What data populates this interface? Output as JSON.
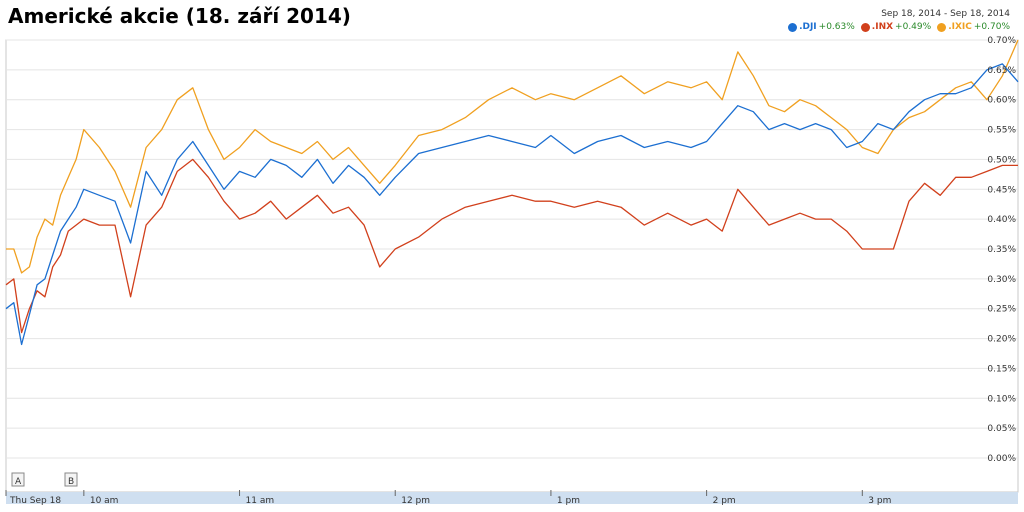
{
  "title": "Americké akcie (18. září 2014)",
  "date_range": "Sep 18, 2014  -  Sep 18, 2014",
  "legend": [
    {
      "name": ".DJI",
      "change": "+0.63%",
      "color": "#1c6fd1"
    },
    {
      "name": ".INX",
      "change": "+0.49%",
      "color": "#d1401c"
    },
    {
      "name": ".IXIC",
      "change": "+0.70%",
      "color": "#f0a020"
    }
  ],
  "markers": [
    "A",
    "B"
  ],
  "chart_data": {
    "type": "line",
    "title": "Americké akcie (18. září 2014)",
    "x_ticks": [
      "Thu Sep 18",
      "10 am",
      "11 am",
      "12 pm",
      "1 pm",
      "2 pm",
      "3 pm"
    ],
    "y_ticks": [
      "0.70%",
      "0.65%",
      "0.60%",
      "0.55%",
      "0.50%",
      "0.45%",
      "0.40%",
      "0.35%",
      "0.30%",
      "0.25%",
      "0.20%",
      "0.15%",
      "0.10%",
      "0.05%",
      "0.00%"
    ],
    "ylim": [
      0,
      0.7
    ],
    "y_unit": "%",
    "grid": true,
    "legend_position": "top-right",
    "x": [
      9.5,
      9.55,
      9.6,
      9.65,
      9.7,
      9.75,
      9.8,
      9.85,
      9.9,
      9.95,
      10.0,
      10.1,
      10.2,
      10.3,
      10.4,
      10.5,
      10.6,
      10.7,
      10.8,
      10.9,
      11.0,
      11.1,
      11.2,
      11.3,
      11.4,
      11.5,
      11.6,
      11.7,
      11.8,
      11.9,
      12.0,
      12.15,
      12.3,
      12.45,
      12.6,
      12.75,
      12.9,
      13.0,
      13.15,
      13.3,
      13.45,
      13.6,
      13.75,
      13.9,
      14.0,
      14.1,
      14.2,
      14.3,
      14.4,
      14.5,
      14.6,
      14.7,
      14.8,
      14.9,
      15.0,
      15.1,
      15.2,
      15.3,
      15.4,
      15.5,
      15.6,
      15.7,
      15.8,
      15.9,
      16.0
    ],
    "series": [
      {
        "name": ".DJI",
        "values": [
          0.25,
          0.26,
          0.19,
          0.24,
          0.29,
          0.3,
          0.34,
          0.38,
          0.4,
          0.42,
          0.45,
          0.44,
          0.43,
          0.36,
          0.48,
          0.44,
          0.5,
          0.53,
          0.49,
          0.45,
          0.48,
          0.47,
          0.5,
          0.49,
          0.47,
          0.5,
          0.46,
          0.49,
          0.47,
          0.44,
          0.47,
          0.51,
          0.52,
          0.53,
          0.54,
          0.53,
          0.52,
          0.54,
          0.51,
          0.53,
          0.54,
          0.52,
          0.53,
          0.52,
          0.53,
          0.56,
          0.59,
          0.58,
          0.55,
          0.56,
          0.55,
          0.56,
          0.55,
          0.52,
          0.53,
          0.56,
          0.55,
          0.58,
          0.6,
          0.61,
          0.61,
          0.62,
          0.65,
          0.66,
          0.63
        ]
      },
      {
        "name": ".INX",
        "values": [
          0.29,
          0.3,
          0.21,
          0.25,
          0.28,
          0.27,
          0.32,
          0.34,
          0.38,
          0.39,
          0.4,
          0.39,
          0.39,
          0.27,
          0.39,
          0.42,
          0.48,
          0.5,
          0.47,
          0.43,
          0.4,
          0.41,
          0.43,
          0.4,
          0.42,
          0.44,
          0.41,
          0.42,
          0.39,
          0.32,
          0.35,
          0.37,
          0.4,
          0.42,
          0.43,
          0.44,
          0.43,
          0.43,
          0.42,
          0.43,
          0.42,
          0.39,
          0.41,
          0.39,
          0.4,
          0.38,
          0.45,
          0.42,
          0.39,
          0.4,
          0.41,
          0.4,
          0.4,
          0.38,
          0.35,
          0.35,
          0.35,
          0.43,
          0.46,
          0.44,
          0.47,
          0.47,
          0.48,
          0.49,
          0.49
        ]
      },
      {
        "name": ".IXIC",
        "values": [
          0.35,
          0.35,
          0.31,
          0.32,
          0.37,
          0.4,
          0.39,
          0.44,
          0.47,
          0.5,
          0.55,
          0.52,
          0.48,
          0.42,
          0.52,
          0.55,
          0.6,
          0.62,
          0.55,
          0.5,
          0.52,
          0.55,
          0.53,
          0.52,
          0.51,
          0.53,
          0.5,
          0.52,
          0.49,
          0.46,
          0.49,
          0.54,
          0.55,
          0.57,
          0.6,
          0.62,
          0.6,
          0.61,
          0.6,
          0.62,
          0.64,
          0.61,
          0.63,
          0.62,
          0.63,
          0.6,
          0.68,
          0.64,
          0.59,
          0.58,
          0.6,
          0.59,
          0.57,
          0.55,
          0.52,
          0.51,
          0.55,
          0.57,
          0.58,
          0.6,
          0.62,
          0.63,
          0.6,
          0.64,
          0.7
        ]
      }
    ]
  }
}
